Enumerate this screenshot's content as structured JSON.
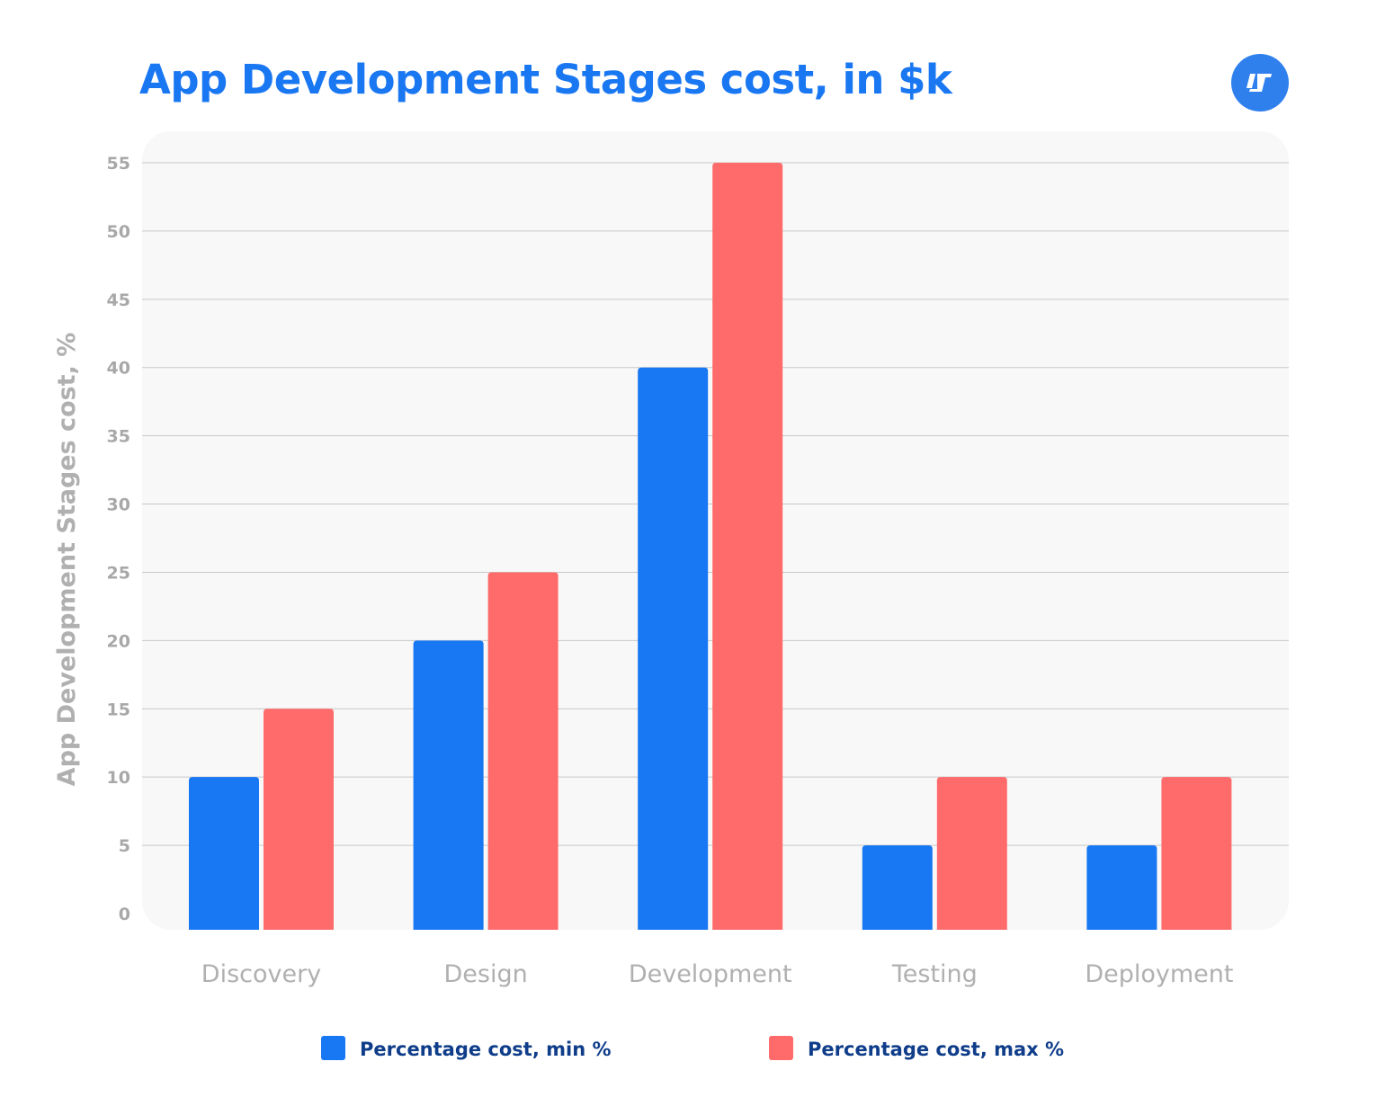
{
  "chart_data": {
    "type": "bar",
    "title": "App Development Stages cost, in $k",
    "xlabel": "",
    "ylabel": "App Development Stages cost, %",
    "categories": [
      "Discovery",
      "Design",
      "Development",
      "Testing",
      "Deployment"
    ],
    "series": [
      {
        "name": "Percentage cost, min %",
        "color": "#1877f2",
        "values": [
          10,
          20,
          40,
          5,
          5
        ]
      },
      {
        "name": "Percentage cost, max %",
        "color": "#ff6b6b",
        "values": [
          15,
          25,
          55,
          10,
          10
        ]
      }
    ],
    "ylim": [
      0,
      55
    ],
    "yticks": [
      0,
      5,
      10,
      15,
      20,
      25,
      30,
      35,
      40,
      45,
      50,
      55
    ],
    "grid": true,
    "legend": "bottom",
    "background": "#f8f8f8"
  },
  "logo": {
    "icon": "brand-logo-icon",
    "color": "#2f80ed"
  }
}
